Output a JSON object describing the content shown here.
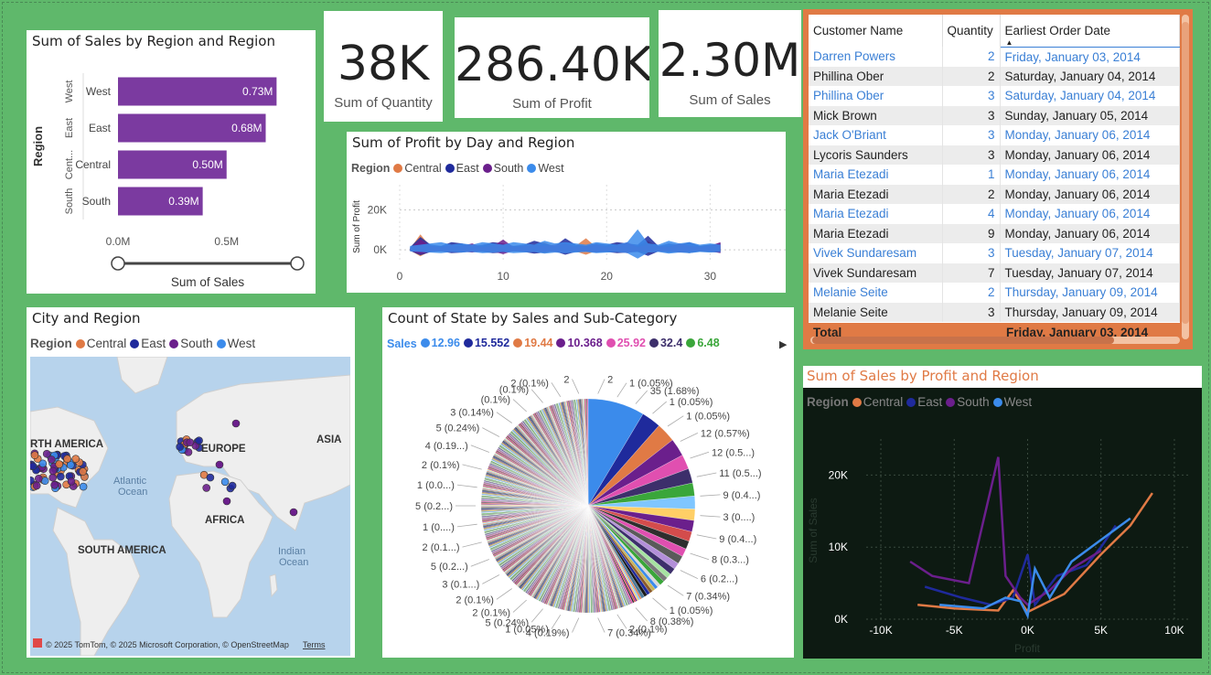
{
  "sales_by_region": {
    "title": "Sum of Sales by Region and Region",
    "ylabel": "Region",
    "xlabel": "Sum of Sales",
    "bar_color": "#7b3aa0",
    "ticks": [
      "0.0M",
      "0.5M"
    ]
  },
  "kpis": {
    "quantity": {
      "value": "38K",
      "label": "Sum of Quantity"
    },
    "profit": {
      "value": "286.40K",
      "label": "Sum of Profit"
    },
    "sales": {
      "value": "2.30M",
      "label": "Sum of Sales"
    }
  },
  "profit_by_day": {
    "title": "Sum of Profit by Day and Region",
    "legend_title": "Region",
    "ylabel": "Sum of Profit",
    "y_ticks": [
      "20K",
      "0K"
    ],
    "x_ticks": [
      "0",
      "10",
      "20",
      "30"
    ]
  },
  "regions": [
    {
      "name": "Central",
      "color": "#e07a45"
    },
    {
      "name": "East",
      "color": "#1f2a9c"
    },
    {
      "name": "South",
      "color": "#6b1f8c"
    },
    {
      "name": "West",
      "color": "#3b8beb"
    }
  ],
  "map": {
    "title": "City and Region",
    "legend_title": "Region",
    "labels": {
      "north_america": "RTH AMERICA",
      "europe": "EUROPE",
      "asia": "ASIA",
      "africa": "AFRICA",
      "south_america": "SOUTH AMERICA",
      "atlantic_1": "Atlantic",
      "atlantic_2": "Ocean",
      "indian_1": "Indian",
      "indian_2": "Ocean"
    },
    "attribution": "© 2025 TomTom, © 2025 Microsoft Corporation, © OpenStreetMap",
    "terms": "Terms"
  },
  "pie": {
    "title": "Count of State by Sales and Sub-Category",
    "legend_title": "Sales",
    "legend_items": [
      {
        "label": "12.96",
        "color": "#3b8beb"
      },
      {
        "label": "15.552",
        "color": "#1f2a9c"
      },
      {
        "label": "19.44",
        "color": "#e07a45"
      },
      {
        "label": "10.368",
        "color": "#6b1f8c"
      },
      {
        "label": "25.92",
        "color": "#e04fb0"
      },
      {
        "label": "32.4",
        "color": "#3d2f6b"
      },
      {
        "label": "6.48",
        "color": "#3aa63a"
      }
    ],
    "more_arrow": "▶",
    "left_labels": [
      "2",
      "2 (0.1%)",
      "(0.1%)",
      "(0.1%)",
      "3 (0.14%)",
      "5 (0.24%)",
      "4 (0.19...)",
      "2 (0.1%)",
      "1 (0.0...)",
      "5 (0.2...)",
      "1 (0....)",
      "2 (0.1...)",
      "5 (0.2...)",
      "3 (0.1...)",
      "2 (0.1%)",
      "2 (0.1%)",
      "5 (0.24%)",
      "1 (0.05%)",
      "4 (0.19%)"
    ],
    "right_labels": [
      "2",
      "1 (0.05%)",
      "35 (1.68%)",
      "1 (0.05%)",
      "1 (0.05%)",
      "12 (0.57%)",
      "12 (0.5...)",
      "11 (0.5...)",
      "9 (0.4...)",
      "3 (0....)",
      "9 (0.4...)",
      "8 (0.3...)",
      "6 (0.2...)",
      "7 (0.34%)",
      "1 (0.05%)",
      "8 (0.38%)",
      "2 (0.1%)",
      "7 (0.34%)"
    ]
  },
  "orders_table": {
    "columns": [
      "Customer Name",
      "Quantity",
      "Earliest Order Date"
    ],
    "rows": [
      {
        "name": "Darren Powers",
        "qty": "2",
        "date": "Friday, January 03, 2014"
      },
      {
        "name": "Phillina Ober",
        "qty": "2",
        "date": "Saturday, January 04, 2014"
      },
      {
        "name": "Phillina Ober",
        "qty": "3",
        "date": "Saturday, January 04, 2014"
      },
      {
        "name": "Mick Brown",
        "qty": "3",
        "date": "Sunday, January 05, 2014"
      },
      {
        "name": "Jack O'Briant",
        "qty": "3",
        "date": "Monday, January 06, 2014"
      },
      {
        "name": "Lycoris Saunders",
        "qty": "3",
        "date": "Monday, January 06, 2014"
      },
      {
        "name": "Maria Etezadi",
        "qty": "1",
        "date": "Monday, January 06, 2014"
      },
      {
        "name": "Maria Etezadi",
        "qty": "2",
        "date": "Monday, January 06, 2014"
      },
      {
        "name": "Maria Etezadi",
        "qty": "4",
        "date": "Monday, January 06, 2014"
      },
      {
        "name": "Maria Etezadi",
        "qty": "9",
        "date": "Monday, January 06, 2014"
      },
      {
        "name": "Vivek Sundaresam",
        "qty": "3",
        "date": "Tuesday, January 07, 2014"
      },
      {
        "name": "Vivek Sundaresam",
        "qty": "7",
        "date": "Tuesday, January 07, 2014"
      },
      {
        "name": "Melanie Seite",
        "qty": "2",
        "date": "Thursday, January 09, 2014"
      },
      {
        "name": "Melanie Seite",
        "qty": "3",
        "date": "Thursday, January 09, 2014"
      }
    ],
    "total_label": "Total",
    "total_date": "Friday, January 03, 2014"
  },
  "sales_by_profit": {
    "title": "Sum of Sales by Profit and Region",
    "legend_title": "Region",
    "xlabel": "Profit",
    "ylabel": "Sum of Sales",
    "y_ticks": [
      "20K",
      "10K",
      "0K"
    ],
    "x_ticks": [
      "-10K",
      "-5K",
      "0K",
      "5K",
      "10K"
    ],
    "title_color": "#e07a45",
    "bg_color": "#0d1a12"
  },
  "chart_data": [
    {
      "type": "bar",
      "title": "Sum of Sales by Region and Region",
      "categories": [
        "West",
        "East",
        "Central",
        "South"
      ],
      "values": [
        0.73,
        0.68,
        0.5,
        0.39
      ],
      "labels": [
        "0.73M",
        "0.68M",
        "0.50M",
        "0.39M"
      ],
      "group_labels": [
        "West",
        "East",
        "Cent...",
        "South"
      ],
      "xlabel": "Sum of Sales",
      "ylabel": "Region",
      "xlim": [
        0,
        0.8
      ]
    },
    {
      "type": "area",
      "title": "Sum of Profit by Day and Region",
      "x": [
        1,
        2,
        3,
        4,
        5,
        6,
        7,
        8,
        9,
        10,
        11,
        12,
        13,
        14,
        15,
        16,
        17,
        18,
        19,
        20,
        21,
        22,
        23,
        24,
        25,
        26,
        27,
        28,
        29,
        30,
        31
      ],
      "series": [
        {
          "name": "Central",
          "values": [
            1,
            12,
            2,
            3,
            1,
            4,
            2,
            3,
            5,
            1,
            3,
            2,
            4,
            6,
            2,
            1,
            3,
            9,
            2,
            3,
            4,
            2,
            3,
            7,
            2,
            3,
            4,
            2,
            3,
            4,
            3
          ]
        },
        {
          "name": "East",
          "values": [
            2,
            10,
            4,
            3,
            6,
            5,
            3,
            4,
            6,
            5,
            3,
            4,
            7,
            5,
            3,
            9,
            4,
            3,
            5,
            4,
            6,
            5,
            4,
            11,
            3,
            5,
            4,
            6,
            3,
            4,
            5
          ]
        },
        {
          "name": "South",
          "values": [
            1,
            8,
            3,
            2,
            4,
            3,
            5,
            2,
            3,
            8,
            2,
            3,
            4,
            3,
            4,
            5,
            2,
            3,
            4,
            2,
            3,
            6,
            2,
            4,
            3,
            2,
            5,
            3,
            2,
            3,
            6
          ]
        },
        {
          "name": "West",
          "values": [
            3,
            4,
            5,
            6,
            4,
            5,
            4,
            6,
            5,
            4,
            6,
            5,
            4,
            7,
            5,
            6,
            5,
            4,
            6,
            5,
            4,
            6,
            16,
            5,
            4,
            7,
            5,
            6,
            4,
            5,
            4
          ]
        }
      ],
      "xlabel": "",
      "ylabel": "Sum of Profit",
      "xlim": [
        0,
        32
      ],
      "ylim": [
        -5000,
        28000
      ]
    },
    {
      "type": "pie",
      "title": "Count of State by Sales and Sub-Category",
      "values": [
        35,
        12,
        12,
        11,
        9,
        9,
        8,
        8,
        7,
        7,
        6,
        5,
        5,
        5,
        4,
        4,
        3,
        3,
        3,
        2,
        2,
        2,
        2,
        2,
        2,
        2,
        1,
        1,
        1,
        1,
        1,
        1,
        1
      ],
      "legend": [
        "12.96",
        "15.552",
        "19.44",
        "10.368",
        "25.92",
        "32.4",
        "6.48"
      ]
    },
    {
      "type": "line",
      "title": "Sum of Sales by Profit and Region",
      "xlabel": "Profit",
      "ylabel": "Sum of Sales",
      "xlim": [
        -11000,
        11000
      ],
      "ylim": [
        0,
        25000
      ],
      "series": [
        {
          "name": "Central",
          "points": [
            [
              -7500,
              2000
            ],
            [
              -5000,
              1500
            ],
            [
              -2000,
              1200
            ],
            [
              -1000,
              4000
            ],
            [
              0,
              1000
            ],
            [
              1000,
              2000
            ],
            [
              2500,
              3500
            ],
            [
              5000,
              9000
            ],
            [
              7000,
              13000
            ],
            [
              8500,
              17500
            ]
          ]
        },
        {
          "name": "East",
          "points": [
            [
              -7000,
              4500
            ],
            [
              -4500,
              3000
            ],
            [
              -2500,
              2000
            ],
            [
              -1000,
              3000
            ],
            [
              0,
              9000
            ],
            [
              500,
              2000
            ],
            [
              2000,
              6000
            ],
            [
              4000,
              7500
            ],
            [
              5000,
              10000
            ],
            [
              6000,
              13000
            ]
          ]
        },
        {
          "name": "South",
          "points": [
            [
              -8000,
              8000
            ],
            [
              -6500,
              6000
            ],
            [
              -4000,
              5000
            ],
            [
              -2000,
              22500
            ],
            [
              -1500,
              6000
            ],
            [
              -500,
              3000
            ],
            [
              0,
              2000
            ],
            [
              1500,
              4000
            ],
            [
              3000,
              7000
            ],
            [
              5000,
              9500
            ]
          ]
        },
        {
          "name": "West",
          "points": [
            [
              -6000,
              2000
            ],
            [
              -3000,
              1500
            ],
            [
              -1500,
              3000
            ],
            [
              -500,
              2500
            ],
            [
              0,
              500
            ],
            [
              500,
              7000
            ],
            [
              1500,
              3000
            ],
            [
              3000,
              8000
            ],
            [
              5000,
              11000
            ],
            [
              7000,
              14000
            ]
          ]
        }
      ]
    }
  ]
}
